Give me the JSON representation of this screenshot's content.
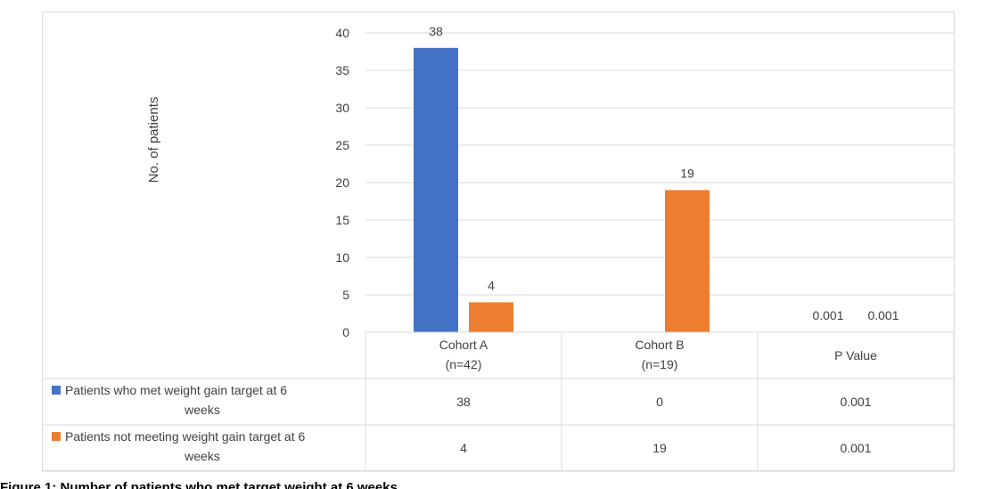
{
  "chart_data": {
    "type": "bar",
    "categories": [
      {
        "line1": "Cohort A",
        "line2": "(n=42)"
      },
      {
        "line1": "Cohort B",
        "line2": "(n=19)"
      },
      {
        "line1": "P Value",
        "line2": ""
      }
    ],
    "series": [
      {
        "name_lines": [
          "Patients who met weight gain target at 6",
          "weeks"
        ],
        "color": "#4472c4",
        "values": [
          38,
          0,
          0.001
        ],
        "table_values": [
          "38",
          "0",
          "0.001"
        ],
        "data_labels": [
          "38",
          "",
          "0.001"
        ]
      },
      {
        "name_lines": [
          "Patients not meeting weight gain target at 6",
          "weeks"
        ],
        "color": "#ed7d31",
        "values": [
          4,
          19,
          0.001
        ],
        "table_values": [
          "4",
          "19",
          "0.001"
        ],
        "data_labels": [
          "4",
          "19",
          "0.001"
        ]
      }
    ],
    "ylabel": "No. of patients",
    "ylim": [
      0,
      40
    ],
    "yticks": [
      0,
      5,
      10,
      15,
      20,
      25,
      30,
      35,
      40
    ],
    "grid": true,
    "legend": "data table",
    "gridline_color": "#d9d9d9"
  },
  "caption": "Figure 1: Number of patients who met target weight at 6 weeks"
}
